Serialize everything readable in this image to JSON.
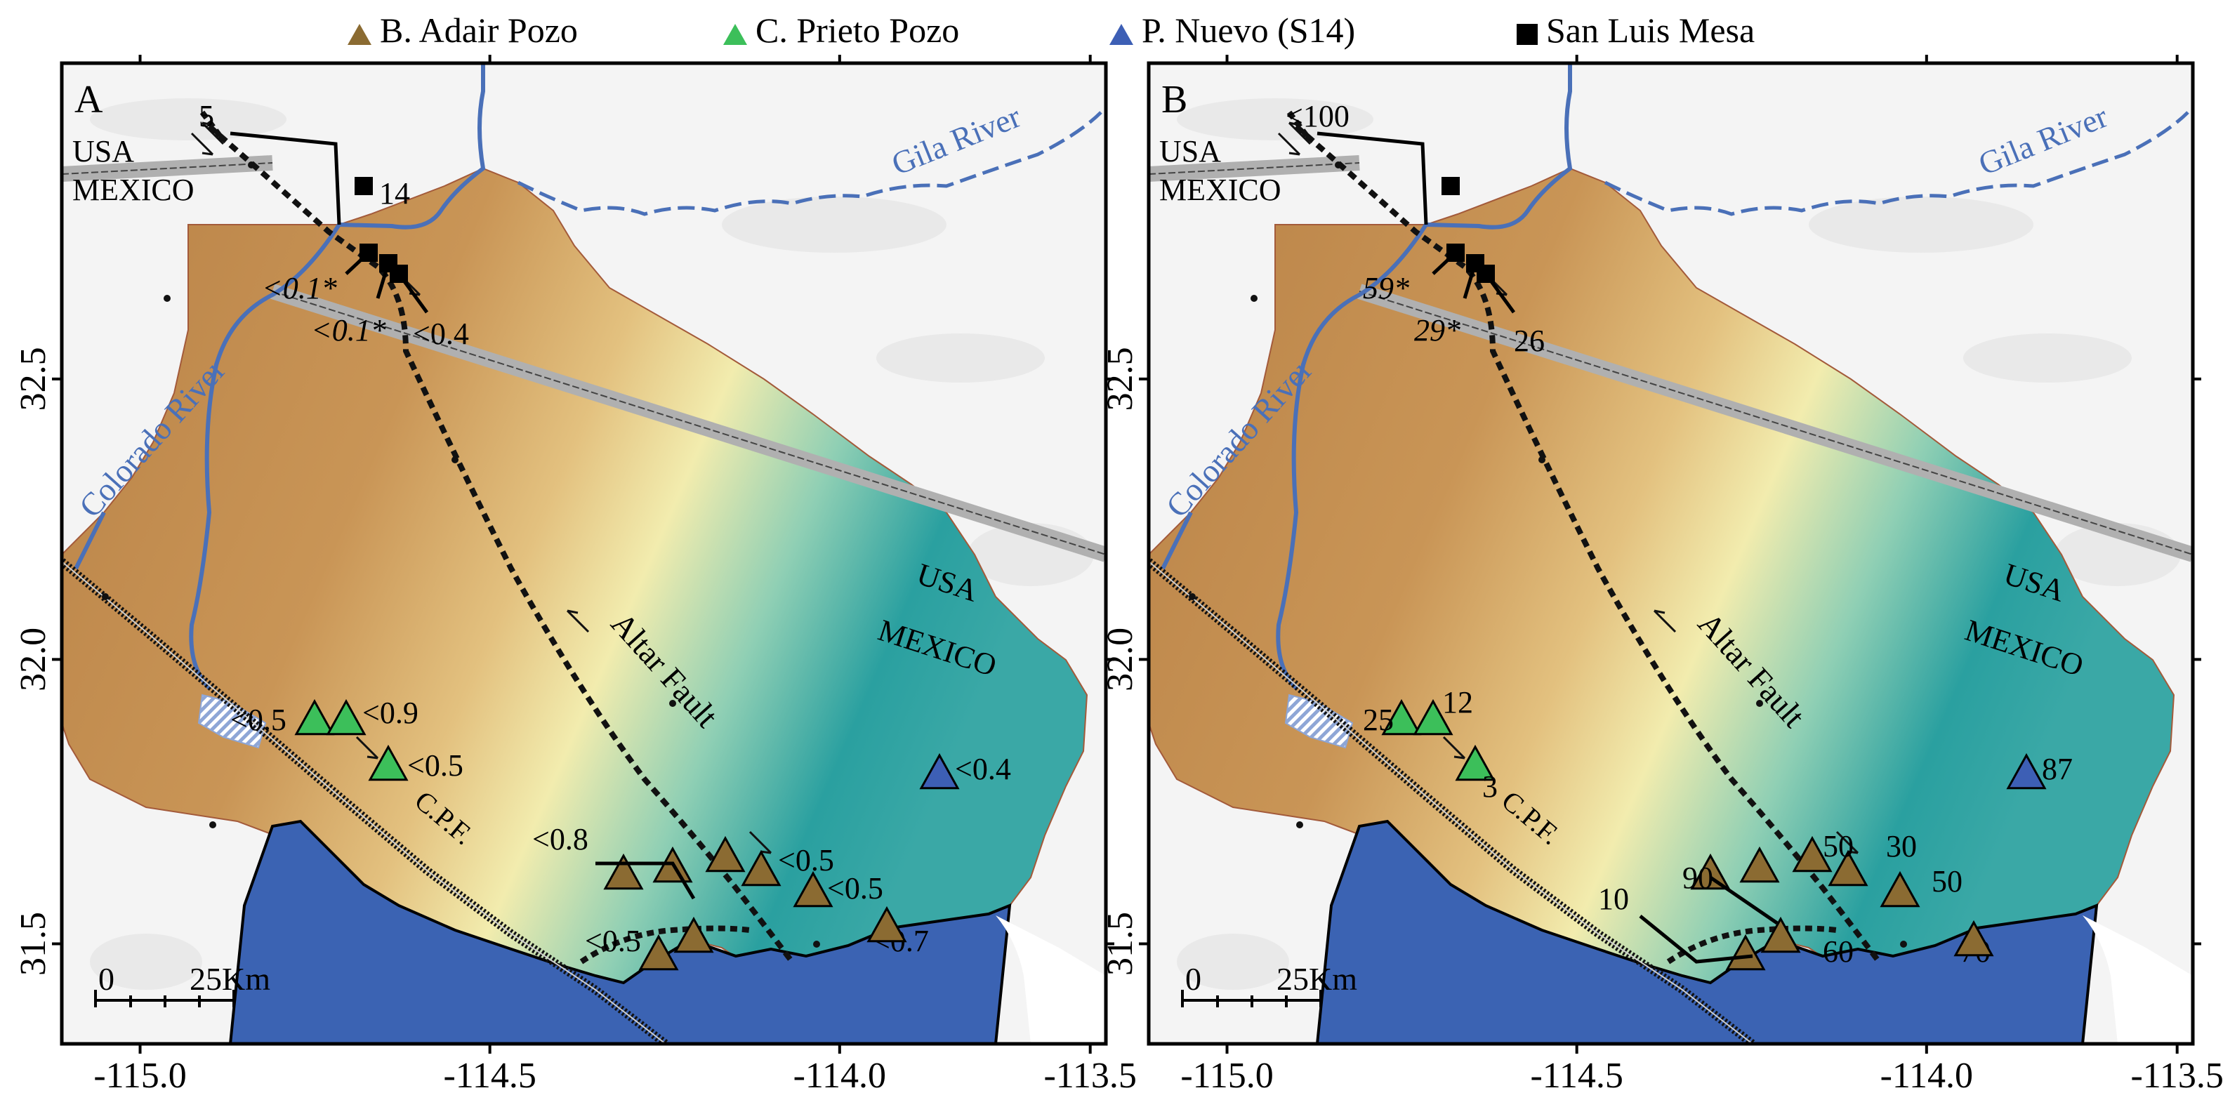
{
  "legend": [
    {
      "label": "B. Adair Pozo",
      "symbol": "triangle",
      "color": "#8b6b32"
    },
    {
      "label": "C. Prieto Pozo",
      "symbol": "triangle",
      "color": "#3cbf5a"
    },
    {
      "label": "P. Nuevo (S14)",
      "symbol": "triangle",
      "color": "#3d5fb5"
    },
    {
      "label": "San Luis Mesa",
      "symbol": "square",
      "color": "#000000"
    }
  ],
  "colors": {
    "sea": "#3b63b3",
    "river": "#4a70b8",
    "land_brown": "#c08a4e",
    "land_tan": "#d9ae72",
    "land_yellow": "#f1e9a9",
    "land_teal": "#1f9c9c",
    "border": "#9a9a9a"
  },
  "axes": {
    "x_ticks": [
      "-115.0",
      "-114.5",
      "-114.0",
      "-113.5"
    ],
    "y_ticks": [
      "31.5",
      "32.0",
      "32.5"
    ]
  },
  "map_labels": {
    "usa": "USA",
    "mexico": "MEXICO",
    "gila": "Gila River",
    "colorado": "Colorado River",
    "altar": "Altar Fault",
    "cpf": "C.P.F.",
    "scale_0": "0",
    "scale_25": "25Km"
  },
  "panels": [
    {
      "letter": "A",
      "top_label": "5",
      "values": {
        "slm_top": "14",
        "slm_a": "<0.1*",
        "slm_b": "<0.1*",
        "slm_c": "<0.4",
        "cp1": "<0.5",
        "cp2": "<0.9",
        "cp3": "<0.5",
        "pn": "<0.4",
        "ba1": "<0.8",
        "ba2": "<0.5",
        "ba3": "<0.5",
        "ba4": "<0.5",
        "ba5": "<0.7"
      }
    },
    {
      "letter": "B",
      "top_label": "<100",
      "values": {
        "slm_top": "",
        "slm_a": "59*",
        "slm_b": "29*",
        "slm_c": "26",
        "cp1": "25",
        "cp2": "12",
        "cp3": "3",
        "pn": "87",
        "ba1": "50",
        "ba2": "30",
        "ba3": "50",
        "ba4": "90",
        "ba5": "70",
        "ba6": "10",
        "ba7": "60"
      }
    }
  ]
}
